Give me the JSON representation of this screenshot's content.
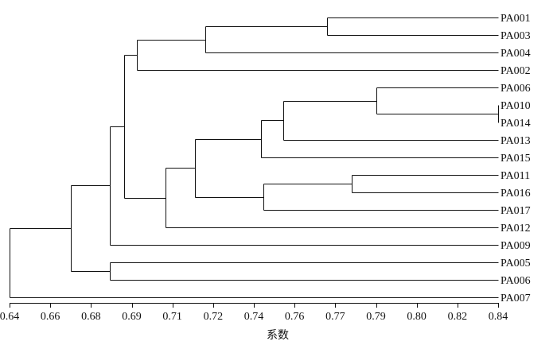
{
  "chart_data": {
    "type": "dendrogram",
    "xlabel": "系数",
    "xlim": [
      0.64,
      0.84
    ],
    "ticks": [
      "0.64",
      "0.66",
      "0.68",
      "0.69",
      "0.71",
      "0.72",
      "0.74",
      "0.76",
      "0.77",
      "0.79",
      "0.80",
      "0.82",
      "0.84"
    ],
    "leaves": [
      "PA001",
      "PA003",
      "PA004",
      "PA002",
      "PA006",
      "PA010",
      "PA014",
      "PA013",
      "PA015",
      "PA011",
      "PA016",
      "PA017",
      "PA012",
      "PA009",
      "PA005",
      "PA006",
      "PA007"
    ],
    "merges": [
      {
        "id": "m1",
        "a": "L0",
        "b": "L1",
        "h": 0.77
      },
      {
        "id": "m2",
        "a": "m1",
        "b": "L2",
        "h": 0.72
      },
      {
        "id": "m3",
        "a": "m2",
        "b": "L3",
        "h": 0.692
      },
      {
        "id": "m4",
        "a": "L5",
        "b": "L6",
        "h": 0.84
      },
      {
        "id": "m5",
        "a": "L4",
        "b": "m4",
        "h": 0.79
      },
      {
        "id": "m6",
        "a": "m5",
        "b": "L7",
        "h": 0.752
      },
      {
        "id": "m7",
        "a": "m6",
        "b": "L8",
        "h": 0.743
      },
      {
        "id": "m8",
        "a": "L9",
        "b": "L10",
        "h": 0.78
      },
      {
        "id": "m9",
        "a": "m8",
        "b": "L11",
        "h": 0.744
      },
      {
        "id": "m10",
        "a": "m7",
        "b": "m9",
        "h": 0.716
      },
      {
        "id": "m11",
        "a": "m10",
        "b": "L12",
        "h": 0.704
      },
      {
        "id": "m12",
        "a": "m3",
        "b": "m11",
        "h": 0.687
      },
      {
        "id": "m13",
        "a": "m12",
        "b": "L13",
        "h": 0.681
      },
      {
        "id": "m14",
        "a": "L14",
        "b": "L15",
        "h": 0.681
      },
      {
        "id": "m15",
        "a": "m13",
        "b": "m14",
        "h": 0.665
      },
      {
        "id": "m16",
        "a": "m15",
        "b": "L16",
        "h": 0.64
      }
    ]
  }
}
